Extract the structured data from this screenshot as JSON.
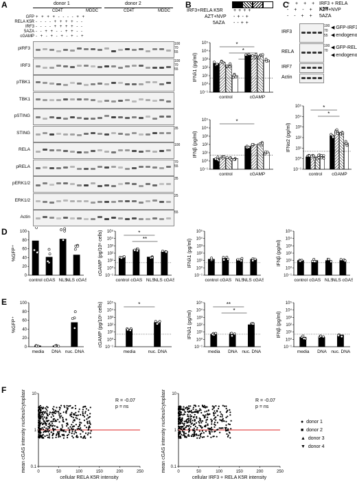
{
  "panels": {
    "A": {
      "label": "A",
      "donors": [
        "donor 1",
        "donor 2"
      ],
      "groups": [
        "CD4T",
        "MDDC",
        "CD4T",
        "MDDC"
      ],
      "row_labels": [
        "GFP",
        "RELA K5R",
        "IRF3",
        "5AZA",
        "cGAMP"
      ],
      "row_signs": [
        "+ + + + - - - - + +",
        "- - - - + + + + - -",
        "- - - - + + + + - -",
        "- - + + - - + + - -",
        "- + - + - + - + - +"
      ],
      "blots": [
        {
          "label": "pIRF3",
          "mw": [
            "100",
            "70",
            "55"
          ]
        },
        {
          "label": "IRF3",
          "mw": [
            "100",
            "70",
            "55"
          ]
        },
        {
          "label": "pTBK1",
          "mw": []
        },
        {
          "label": "TBK1",
          "mw": []
        },
        {
          "label": "pSTING",
          "mw": []
        },
        {
          "label": "STING",
          "mw": [
            "35"
          ]
        },
        {
          "label": "RELA",
          "mw": [
            "100"
          ]
        },
        {
          "label": "pRELA",
          "mw": [
            "70",
            "55"
          ]
        },
        {
          "label": "pERK1/2",
          "mw": [
            "35"
          ]
        },
        {
          "label": "ERK1/2",
          "mw": [
            "25"
          ]
        },
        {
          "label": "Actin",
          "mw": [
            "55"
          ]
        }
      ]
    },
    "B": {
      "label": "B",
      "header": [
        "IRF3+RELA K5R",
        "AZT+NVP",
        "5AZA"
      ],
      "signs": [
        [
          "+",
          "+",
          "+",
          "+"
        ],
        [
          "-",
          "+",
          "-",
          "+"
        ],
        [
          "-",
          "-",
          "+",
          "+"
        ]
      ],
      "top": {
        "ylabel": "IFNλ1 (pg/ml)",
        "categories": [
          "control",
          "cGAMP"
        ]
      },
      "bottom": {
        "ylabel": "IFNβ (pg/ml)",
        "categories": [
          "control",
          "cGAMP"
        ]
      }
    },
    "C": {
      "label": "C",
      "header": [
        "IRF3 + RELA K5R",
        "AZT+NVP",
        "5AZA"
      ],
      "blots": [
        {
          "label": "IRF3",
          "mw": [
            "100",
            "70",
            "55"
          ],
          "notes": [
            "GFP-IRF3",
            "endogenous"
          ]
        },
        {
          "label": "RELA",
          "mw": [
            "100",
            "70"
          ],
          "notes": [
            "GFP-RELA",
            "endogenous"
          ]
        },
        {
          "label": "IRF7",
          "mw": [],
          "notes": []
        },
        {
          "label": "Actin",
          "mw": [],
          "notes": []
        }
      ],
      "chart": {
        "ylabel": "IFNα2 (pg/ml)",
        "categories": [
          "control",
          "cGAMP"
        ]
      }
    },
    "D": {
      "label": "D",
      "categories": [
        "control",
        "cGAS",
        "NLS",
        "NLS cGAS"
      ]
    },
    "E": {
      "label": "E"
    },
    "F": {
      "label": "F",
      "ylabel": "mean cGAS intensity nucleus/cytoplasm",
      "left": {
        "xlabel": "cellular RELA K5R intensity",
        "stat_r": "R = -0.07",
        "stat_p": "p = ns"
      },
      "right": {
        "xlabel": "cellular IRF3 + RELA K5R intensity",
        "stat_r": "R = -0.07",
        "stat_p": "p = ns"
      },
      "legend": [
        "donor 1",
        "donor 2",
        "donor 3",
        "donor 4"
      ]
    }
  },
  "chart_data": [
    {
      "id": "B-top",
      "type": "bar",
      "ylabel": "IFNλ1 (pg/ml)",
      "log": true,
      "ylim": [
        0.1,
        100000
      ],
      "yticks": [
        "10⁻¹",
        "10⁰",
        "10¹",
        "10²",
        "10³",
        "10⁴",
        "10⁵"
      ],
      "categories": [
        "control",
        "cGAMP"
      ],
      "series": [
        {
          "values": [
            300,
            3000
          ]
        },
        {
          "values": [
            400,
            3000
          ]
        },
        {
          "values": [
            200,
            2500
          ]
        },
        {
          "values": [
            10,
            700
          ]
        }
      ],
      "significance": [
        "*",
        "*",
        "**"
      ]
    },
    {
      "id": "B-bottom",
      "type": "bar",
      "ylabel": "IFNβ (pg/ml)",
      "log": true,
      "ylim": [
        0.1,
        100000
      ],
      "yticks": [
        "10⁻¹",
        "10⁰",
        "10¹",
        "10²",
        "10³",
        "10⁴",
        "10⁵"
      ],
      "categories": [
        "control",
        "cGAMP"
      ],
      "series": [
        {
          "values": [
            2,
            60
          ]
        },
        {
          "values": [
            2.5,
            90
          ]
        },
        {
          "values": [
            2,
            120
          ]
        },
        {
          "values": [
            2,
            10
          ]
        }
      ],
      "significance": [
        "*"
      ]
    },
    {
      "id": "C-bottom",
      "type": "bar",
      "ylabel": "IFNα2 (pg/ml)",
      "log": true,
      "ylim": [
        0.1,
        100000
      ],
      "yticks": [
        "10⁻¹",
        "10⁰",
        "10¹",
        "10²",
        "10³",
        "10⁴",
        "10⁵"
      ],
      "categories": [
        "control",
        "cGAMP"
      ],
      "series": [
        {
          "values": [
            1.5,
            150
          ]
        },
        {
          "values": [
            1.5,
            400
          ]
        },
        {
          "values": [
            1.5,
            300
          ]
        },
        {
          "values": [
            1.5,
            30
          ]
        }
      ],
      "significance": [
        "*",
        "*"
      ]
    },
    {
      "id": "D-1",
      "type": "bar",
      "ylabel": "%GFP⁺",
      "log": false,
      "ylim": [
        0,
        100
      ],
      "yticks": [
        "0",
        "20",
        "40",
        "60",
        "80",
        "100"
      ],
      "categories": [
        "control",
        "cGAS",
        "NLS",
        "NLS cGAS"
      ],
      "values": [
        78,
        41,
        82,
        46
      ]
    },
    {
      "id": "D-2",
      "type": "bar",
      "ylabel": "cGAMP (pg/10⁶ cells)",
      "log": true,
      "ylim": [
        0.1,
        100000
      ],
      "yticks": [
        "10⁻¹",
        "10⁰",
        "10¹",
        "10²",
        "10³",
        "10⁴",
        "10⁵"
      ],
      "categories": [
        "control",
        "cGAS",
        "NLS",
        "NLS cGAS"
      ],
      "values": [
        30,
        300,
        30,
        150
      ],
      "significance": [
        "*",
        "**"
      ]
    },
    {
      "id": "D-3",
      "type": "bar",
      "ylabel": "IFNλ1 (pg/ml)",
      "log": true,
      "ylim": [
        0.1,
        100000
      ],
      "yticks": [
        "10⁻¹",
        "10⁰",
        "10¹",
        "10²",
        "10³",
        "10⁴",
        "10⁵"
      ],
      "categories": [
        "control",
        "cGAS",
        "NLS",
        "NLS cGAS"
      ],
      "values": [
        15,
        20,
        15,
        15
      ]
    },
    {
      "id": "D-4",
      "type": "bar",
      "ylabel": "IFNβ (pg/ml)",
      "log": true,
      "ylim": [
        0.1,
        100000
      ],
      "yticks": [
        "10⁻¹",
        "10⁰",
        "10¹",
        "10²",
        "10³",
        "10⁴",
        "10⁵"
      ],
      "categories": [
        "control",
        "cGAS",
        "NLS",
        "NLS cGAS"
      ],
      "values": [
        10,
        10,
        10,
        10
      ]
    },
    {
      "id": "E-1",
      "type": "bar",
      "ylabel": "%GFP⁺",
      "log": false,
      "ylim": [
        0,
        100
      ],
      "yticks": [
        "0",
        "20",
        "40",
        "60",
        "80",
        "100"
      ],
      "categories": [
        "media",
        "DNA",
        "nuc. DNA"
      ],
      "values": [
        2,
        2,
        55
      ]
    },
    {
      "id": "E-2",
      "type": "bar",
      "ylabel": "cGAMP (pg/10⁶ cells)",
      "log": true,
      "ylim": [
        0.1,
        100000
      ],
      "yticks": [
        "10⁻¹",
        "10⁰",
        "10¹",
        "10²",
        "10³",
        "10⁴",
        "10⁵"
      ],
      "categories": [
        "media",
        "nuc. DNA"
      ],
      "values": [
        25,
        200
      ],
      "significance": [
        "*"
      ]
    },
    {
      "id": "E-3",
      "type": "bar",
      "ylabel": "IFNλ1 (pg/ml)",
      "log": true,
      "ylim": [
        0.1,
        100000
      ],
      "yticks": [
        "10⁻¹",
        "10⁰",
        "10¹",
        "10²",
        "10³",
        "10⁴",
        "10⁵"
      ],
      "categories": [
        "media",
        "DNA",
        "nuc. DNA"
      ],
      "values": [
        5,
        5,
        100
      ],
      "significance": [
        "**",
        "*"
      ]
    },
    {
      "id": "E-4",
      "type": "bar",
      "ylabel": "IFNβ (pg/ml)",
      "log": true,
      "ylim": [
        0.1,
        100000
      ],
      "yticks": [
        "10⁻¹",
        "10⁰",
        "10¹",
        "10²",
        "10³",
        "10⁴",
        "10⁵"
      ],
      "categories": [
        "media",
        "DNA",
        "nuc. DNA"
      ],
      "values": [
        2,
        2,
        4
      ]
    },
    {
      "id": "F-left",
      "type": "scatter",
      "xlabel": "cellular RELA K5R intensity",
      "ylabel": "mean cGAS intensity nucleus/cytoplasm",
      "xlim": [
        0,
        250
      ],
      "ylim": [
        0.1,
        10
      ],
      "xticks": [
        "0",
        "50",
        "100",
        "150",
        "200",
        "250"
      ],
      "yticks": [
        "0.1",
        "1",
        "10"
      ]
    },
    {
      "id": "F-right",
      "type": "scatter",
      "xlabel": "cellular IRF3 + RELA K5R intensity",
      "ylabel": "mean cGAS intensity nucleus/cytoplasm",
      "xlim": [
        0,
        250
      ],
      "ylim": [
        0.1,
        10
      ],
      "xticks": [
        "0",
        "50",
        "100",
        "150",
        "200",
        "250"
      ],
      "yticks": [
        "0.1",
        "1",
        "10"
      ]
    }
  ]
}
